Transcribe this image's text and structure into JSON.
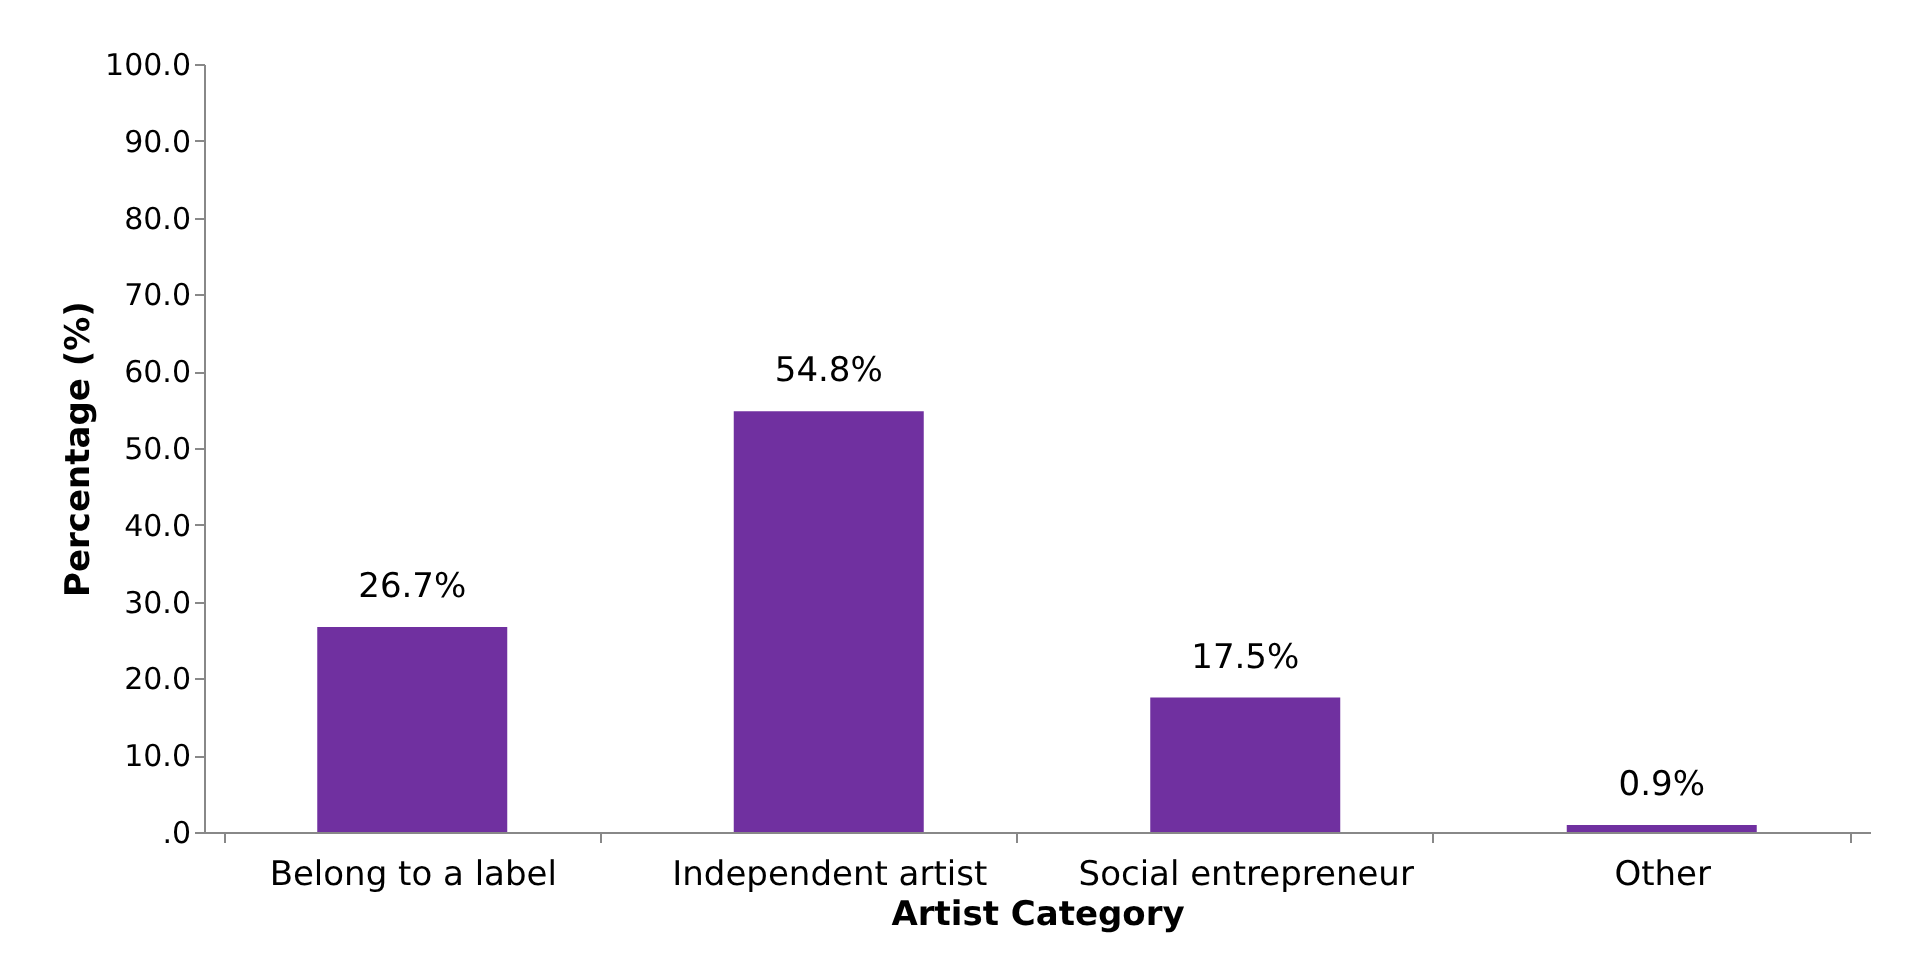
{
  "chart_data": {
    "type": "bar",
    "xlabel": "Artist Category",
    "ylabel": "Percentage (%)",
    "categories": [
      "Belong to a label",
      "Independent artist",
      "Social entrepreneur",
      "Other"
    ],
    "values": [
      26.7,
      54.8,
      17.5,
      0.9
    ],
    "value_labels": [
      "26.7%",
      "54.8%",
      "17.5%",
      "0.9%"
    ],
    "color": "#7030a0",
    "ylim": [
      0,
      100
    ],
    "yticks": [
      {
        "value": 0,
        "label": ".0"
      },
      {
        "value": 10,
        "label": "10.0"
      },
      {
        "value": 20,
        "label": "20.0"
      },
      {
        "value": 30,
        "label": "30.0"
      },
      {
        "value": 40,
        "label": "40.0"
      },
      {
        "value": 50,
        "label": "50.0"
      },
      {
        "value": 60,
        "label": "60.0"
      },
      {
        "value": 70,
        "label": "70.0"
      },
      {
        "value": 80,
        "label": "80.0"
      },
      {
        "value": 90,
        "label": "90.0"
      },
      {
        "value": 100,
        "label": "100.0"
      }
    ],
    "grid": false
  }
}
